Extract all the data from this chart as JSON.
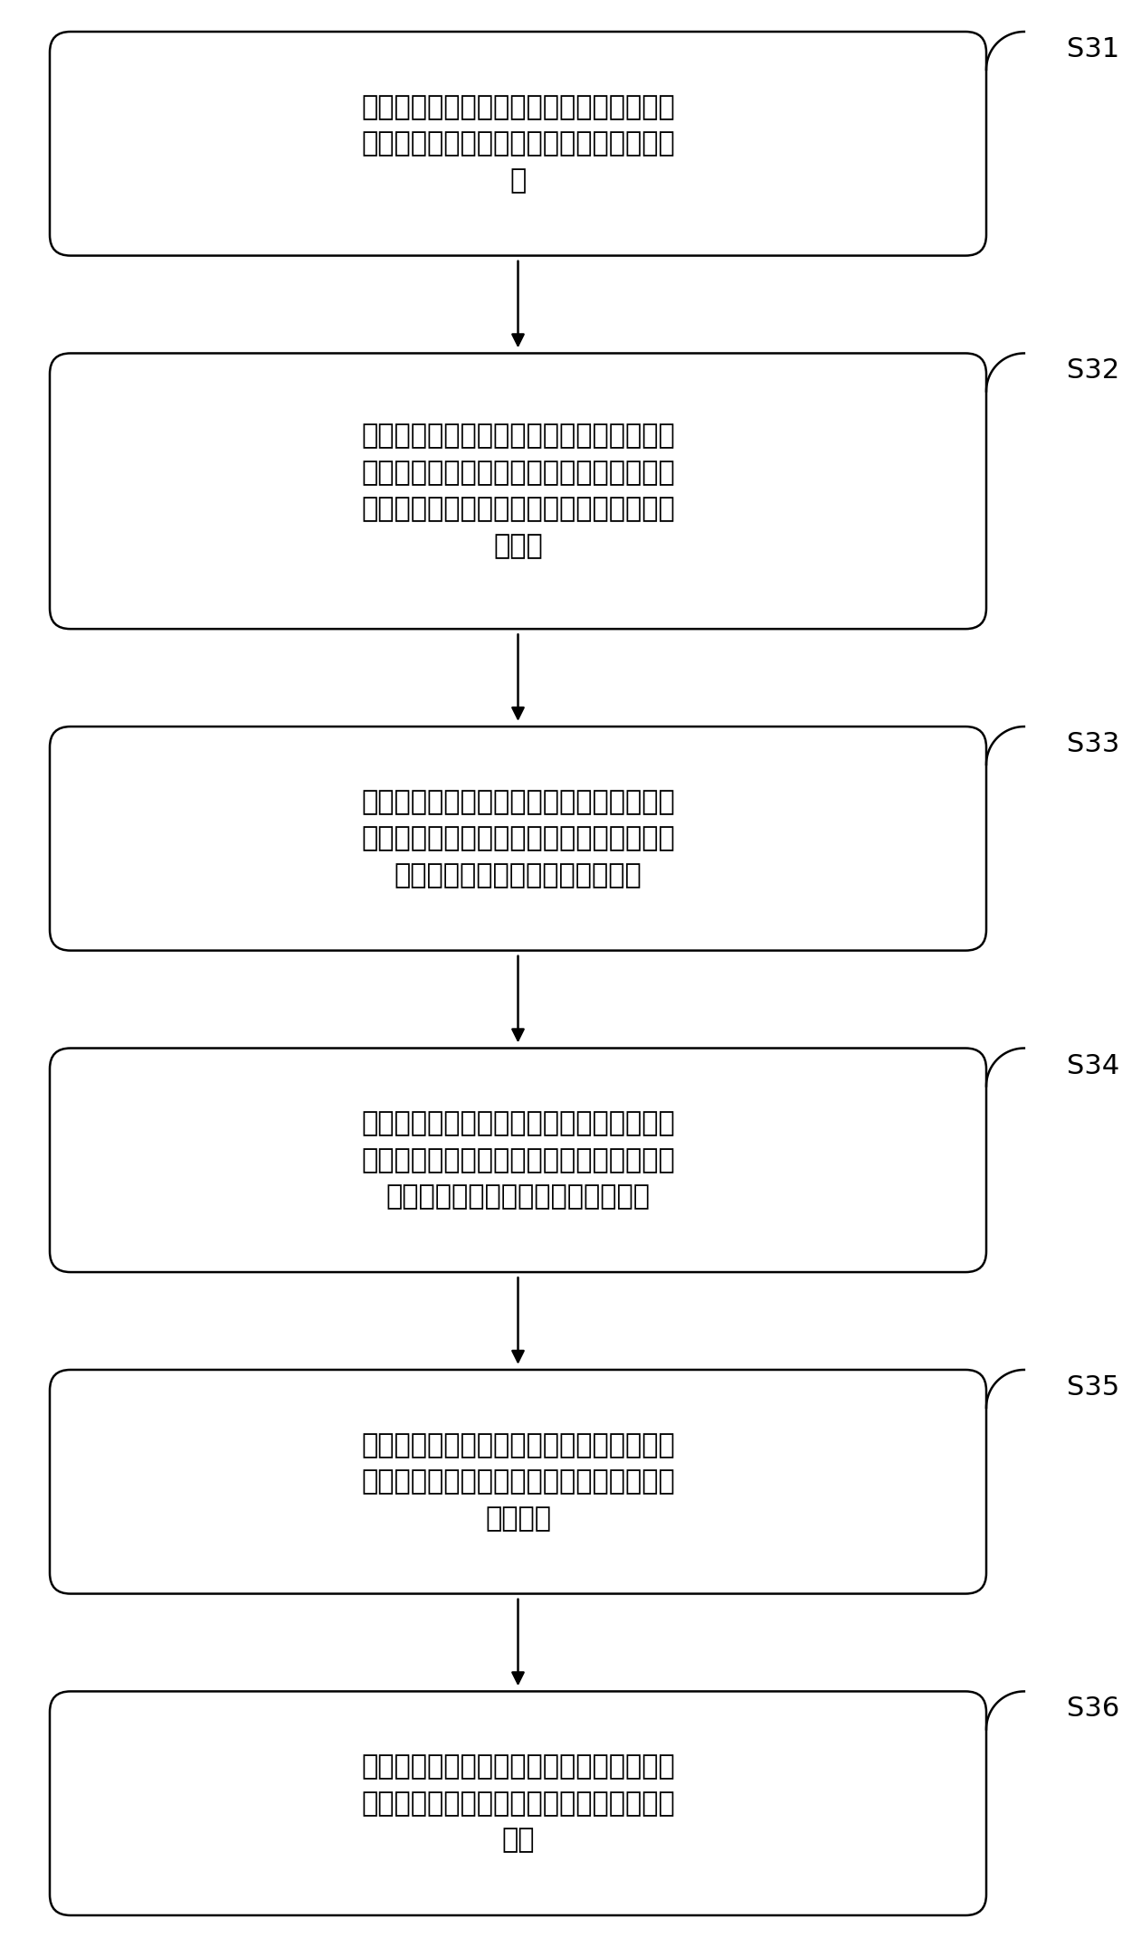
{
  "background_color": "#ffffff",
  "box_border_color": "#000000",
  "box_fill_color": "#ffffff",
  "arrow_color": "#000000",
  "label_color": "#000000",
  "boxes": [
    {
      "id": "S31",
      "label": "S31",
      "text": "读取户型数据，根据户型数据绘制多个墙体\n模型，并组合多个墙体模型生成初始房间模\n型"
    },
    {
      "id": "S32",
      "label": "S32",
      "text": "从预先建立的建筑元素模型库中获取用户选\n择的至少一个建筑元素模型，并将至少一个\n建筑元素模型设置于初始房间模型中用户指\n定位置"
    },
    {
      "id": "S33",
      "label": "S33",
      "text": "响应于用户的修改操作，对初始房间模型中\n的墙体模型以及建筑元素模型进行建筑规范\n内相应的修改，生成房间改造模型"
    },
    {
      "id": "S34",
      "label": "S34",
      "text": "从预先建立的家具模型库中获取用户选择的\n至少一个家具模型，并将至少一个家具模型\n设置于房间改造模型中用户指定位置"
    },
    {
      "id": "S35",
      "label": "S35",
      "text": "根据房间改造模型中用户指定位置的空间结\n构，调整家具模型的大小或结构以生成房间\n装修模型"
    },
    {
      "id": "S36",
      "label": "S36",
      "text": "对房间装修模型进行渲染处理，导出为渲染\n设计图，并将渲染设计图存储至预设房间模\n型库"
    }
  ],
  "box_heights": [
    3,
    4,
    3,
    3,
    3,
    3
  ],
  "figsize": [
    12.4,
    21.52
  ],
  "dpi": 100,
  "font_size": 22,
  "label_font_size": 22
}
